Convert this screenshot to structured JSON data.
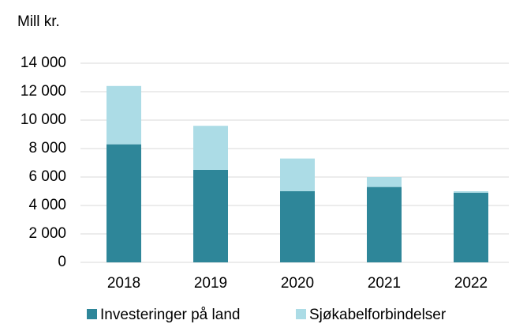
{
  "chart_data": {
    "type": "bar",
    "stacked": true,
    "y_axis_title": "Mill kr.",
    "categories": [
      "2018",
      "2019",
      "2020",
      "2021",
      "2022"
    ],
    "series": [
      {
        "name": "Investeringer på land",
        "color": "#2e8699",
        "values": [
          8300,
          6500,
          5000,
          5300,
          4900
        ]
      },
      {
        "name": "Sjøkabelforbindelser",
        "color": "#acdce6",
        "values": [
          4100,
          3100,
          2300,
          700,
          100
        ]
      }
    ],
    "ylim": [
      0,
      14000
    ],
    "yticks": [
      0,
      {
        "value": 2000,
        "label": "2 000"
      },
      {
        "value": 4000,
        "label": "4 000"
      },
      {
        "value": 6000,
        "label": "6 000"
      },
      {
        "value": 8000,
        "label": "8 000"
      },
      {
        "value": 10000,
        "label": "10 000"
      },
      {
        "value": 12000,
        "label": "12 000"
      },
      {
        "value": 14000,
        "label": "14 000"
      }
    ],
    "grid": true,
    "legend": "bottom"
  }
}
